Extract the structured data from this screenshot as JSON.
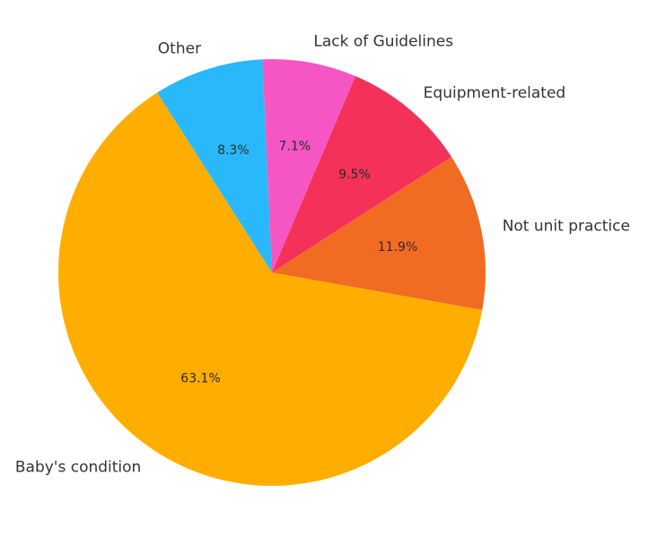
{
  "chart_data": {
    "type": "pie",
    "title": "",
    "start_angle_deg": 122.5,
    "direction": "counterclockwise",
    "slices": [
      {
        "label": "Baby's condition",
        "value": 63.1,
        "pct_label": "63.1%",
        "color": "#FFAE00"
      },
      {
        "label": "Not unit practice",
        "value": 11.9,
        "pct_label": "11.9%",
        "color": "#F26B22"
      },
      {
        "label": "Equipment-related",
        "value": 9.5,
        "pct_label": "9.5%",
        "color": "#F43259"
      },
      {
        "label": "Lack of Guidelines",
        "value": 7.1,
        "pct_label": "7.1%",
        "color": "#F556C3"
      },
      {
        "label": "Other",
        "value": 8.3,
        "pct_label": "8.3%",
        "color": "#29B9FB"
      }
    ]
  }
}
